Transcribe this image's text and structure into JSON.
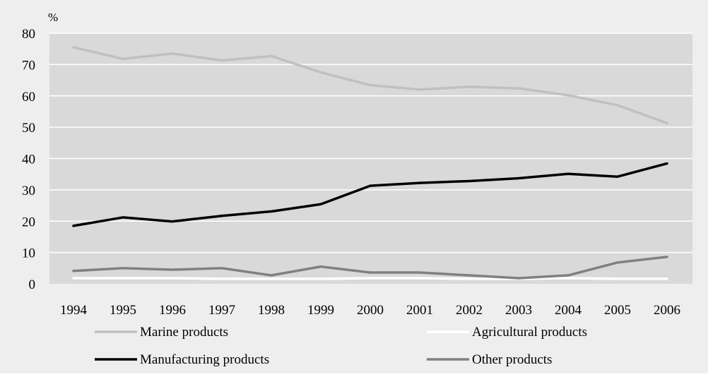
{
  "chart_data": {
    "type": "line",
    "ylabel": "%",
    "ylim": [
      0,
      80
    ],
    "yticks": [
      "0",
      "10",
      "20",
      "30",
      "40",
      "50",
      "60",
      "70",
      "80"
    ],
    "categories": [
      "1994",
      "1995",
      "1996",
      "1997",
      "1998",
      "1999",
      "2000",
      "2001",
      "2002",
      "2003",
      "2004",
      "2005",
      "2006"
    ],
    "grid": true,
    "legend_position": "bottom",
    "series": [
      {
        "name": "Marine products",
        "color": "#c0c0c0",
        "values": [
          75.5,
          71.8,
          73.5,
          71.3,
          72.7,
          67.5,
          63.4,
          62.0,
          62.9,
          62.4,
          60.2,
          57.0,
          51.3
        ]
      },
      {
        "name": "Agricultural products",
        "color": "#ffffff",
        "values": [
          1.8,
          1.8,
          1.8,
          1.6,
          1.6,
          1.6,
          1.8,
          1.8,
          1.6,
          1.6,
          1.8,
          1.6,
          1.6
        ]
      },
      {
        "name": "Manufacturing products",
        "color": "#000000",
        "values": [
          18.5,
          21.2,
          19.9,
          21.7,
          23.1,
          25.4,
          31.3,
          32.2,
          32.8,
          33.7,
          35.1,
          34.2,
          38.4
        ]
      },
      {
        "name": "Other products",
        "color": "#808080",
        "values": [
          4.1,
          5.0,
          4.5,
          5.0,
          2.7,
          5.5,
          3.6,
          3.6,
          2.7,
          1.8,
          2.7,
          6.8,
          8.6
        ]
      }
    ]
  }
}
